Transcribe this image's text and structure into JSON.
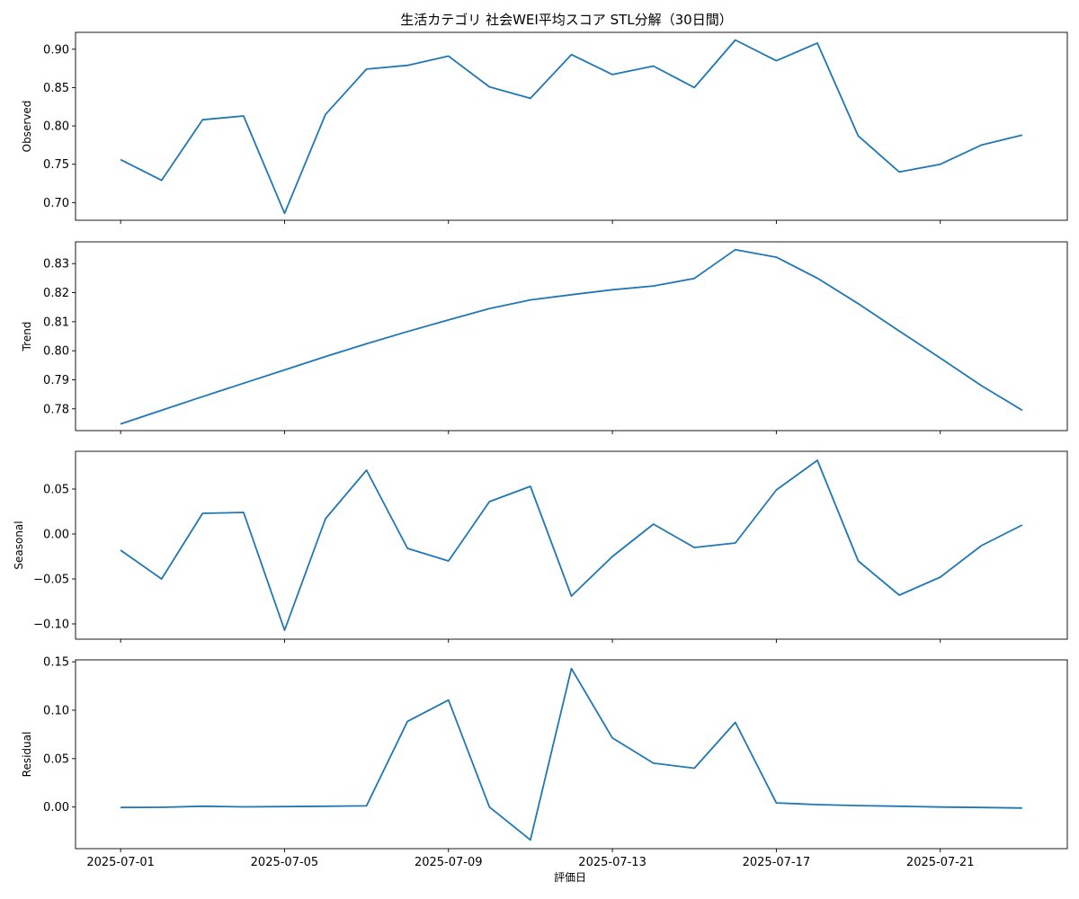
{
  "title": "生活カテゴリ 社会WEI平均スコア STL分解（30日間）",
  "xlabel": "評価日",
  "x_tick_labels": [
    "2025-07-01",
    "2025-07-05",
    "2025-07-09",
    "2025-07-13",
    "2025-07-17",
    "2025-07-21"
  ],
  "line_color": "#1f77b4",
  "chart_data": [
    {
      "type": "line",
      "ylabel": "Observed",
      "x": [
        "2025-07-01",
        "2025-07-02",
        "2025-07-03",
        "2025-07-04",
        "2025-07-05",
        "2025-07-06",
        "2025-07-07",
        "2025-07-08",
        "2025-07-09",
        "2025-07-10",
        "2025-07-11",
        "2025-07-12",
        "2025-07-13",
        "2025-07-14",
        "2025-07-15",
        "2025-07-16",
        "2025-07-17",
        "2025-07-18",
        "2025-07-19",
        "2025-07-20",
        "2025-07-21",
        "2025-07-22",
        "2025-07-23"
      ],
      "values": [
        0.756,
        0.729,
        0.808,
        0.813,
        0.686,
        0.815,
        0.874,
        0.879,
        0.891,
        0.851,
        0.836,
        0.893,
        0.867,
        0.878,
        0.85,
        0.912,
        0.885,
        0.908,
        0.787,
        0.74,
        0.75,
        0.775,
        0.788
      ],
      "ylim": [
        0.677,
        0.922
      ],
      "yticks": [
        0.7,
        0.75,
        0.8,
        0.85,
        0.9
      ],
      "ytick_labels": [
        "0.70",
        "0.75",
        "0.80",
        "0.85",
        "0.90"
      ]
    },
    {
      "type": "line",
      "ylabel": "Trend",
      "x": [
        "2025-07-01",
        "2025-07-02",
        "2025-07-03",
        "2025-07-04",
        "2025-07-05",
        "2025-07-06",
        "2025-07-07",
        "2025-07-08",
        "2025-07-09",
        "2025-07-10",
        "2025-07-11",
        "2025-07-12",
        "2025-07-13",
        "2025-07-14",
        "2025-07-15",
        "2025-07-16",
        "2025-07-17",
        "2025-07-18",
        "2025-07-19",
        "2025-07-20",
        "2025-07-21",
        "2025-07-22",
        "2025-07-23"
      ],
      "values": [
        0.7748,
        0.7795,
        0.7842,
        0.7888,
        0.7934,
        0.798,
        0.8024,
        0.8066,
        0.8106,
        0.8145,
        0.8175,
        0.8193,
        0.821,
        0.8223,
        0.8249,
        0.8348,
        0.8322,
        0.825,
        0.8162,
        0.8068,
        0.7975,
        0.788,
        0.7795
      ],
      "ylim": [
        0.7725,
        0.8375
      ],
      "yticks": [
        0.78,
        0.79,
        0.8,
        0.81,
        0.82,
        0.83
      ],
      "ytick_labels": [
        "0.78",
        "0.79",
        "0.80",
        "0.81",
        "0.82",
        "0.83"
      ]
    },
    {
      "type": "line",
      "ylabel": "Seasonal",
      "x": [
        "2025-07-01",
        "2025-07-02",
        "2025-07-03",
        "2025-07-04",
        "2025-07-05",
        "2025-07-06",
        "2025-07-07",
        "2025-07-08",
        "2025-07-09",
        "2025-07-10",
        "2025-07-11",
        "2025-07-12",
        "2025-07-13",
        "2025-07-14",
        "2025-07-15",
        "2025-07-16",
        "2025-07-17",
        "2025-07-18",
        "2025-07-19",
        "2025-07-20",
        "2025-07-21",
        "2025-07-22",
        "2025-07-23"
      ],
      "values": [
        -0.018,
        -0.05,
        0.023,
        0.024,
        -0.107,
        0.017,
        0.071,
        -0.016,
        -0.03,
        0.036,
        0.053,
        -0.069,
        -0.025,
        0.011,
        -0.015,
        -0.01,
        0.049,
        0.082,
        -0.03,
        -0.068,
        -0.048,
        -0.013,
        0.01
      ],
      "ylim": [
        -0.117,
        0.092
      ],
      "yticks": [
        -0.1,
        -0.05,
        0.0,
        0.05
      ],
      "ytick_labels": [
        "−0.10",
        "−0.05",
        "0.00",
        "0.05"
      ]
    },
    {
      "type": "line",
      "ylabel": "Residual",
      "x": [
        "2025-07-01",
        "2025-07-02",
        "2025-07-03",
        "2025-07-04",
        "2025-07-05",
        "2025-07-06",
        "2025-07-07",
        "2025-07-08",
        "2025-07-09",
        "2025-07-10",
        "2025-07-11",
        "2025-07-12",
        "2025-07-13",
        "2025-07-14",
        "2025-07-15",
        "2025-07-16",
        "2025-07-17",
        "2025-07-18",
        "2025-07-19",
        "2025-07-20",
        "2025-07-21",
        "2025-07-22",
        "2025-07-23"
      ],
      "values": [
        -0.0005,
        -0.0003,
        0.0008,
        0.0002,
        0.0005,
        0.0008,
        0.0012,
        0.0885,
        0.1105,
        0.0,
        -0.034,
        0.143,
        0.0713,
        0.0453,
        0.0401,
        0.0875,
        0.0043,
        0.0025,
        0.0015,
        0.0008,
        0.0,
        -0.0005,
        -0.001
      ],
      "ylim": [
        -0.043,
        0.152
      ],
      "yticks": [
        0.0,
        0.05,
        0.1,
        0.15
      ],
      "ytick_labels": [
        "0.00",
        "0.05",
        "0.10",
        "0.15"
      ]
    }
  ]
}
